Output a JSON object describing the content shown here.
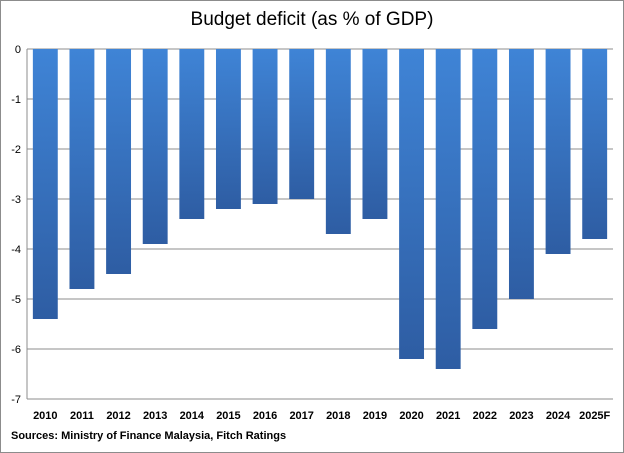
{
  "chart_data": {
    "type": "bar",
    "title": "Budget deficit (as % of GDP)",
    "categories": [
      "2010",
      "2011",
      "2012",
      "2013",
      "2014",
      "2015",
      "2016",
      "2017",
      "2018",
      "2019",
      "2020",
      "2021",
      "2022",
      "2023",
      "2024",
      "2025F"
    ],
    "values": [
      -5.4,
      -4.8,
      -4.5,
      -3.9,
      -3.4,
      -3.2,
      -3.1,
      -3.0,
      -3.7,
      -3.4,
      -6.2,
      -6.4,
      -5.6,
      -5.0,
      -4.1,
      -3.8
    ],
    "xlabel": "",
    "ylabel": "",
    "ylim": [
      -7,
      0
    ],
    "yticks": [
      0,
      -1,
      -2,
      -3,
      -4,
      -5,
      -6,
      -7
    ],
    "grid": true,
    "legend": "none",
    "bar_color_top": "#3f84d6",
    "bar_color_bottom": "#2e5da3",
    "source": "Sources: Ministry of Finance Malaysia, Fitch Ratings"
  }
}
